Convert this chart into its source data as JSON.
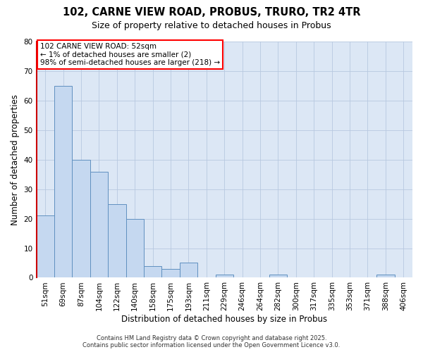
{
  "title_line1": "102, CARNE VIEW ROAD, PROBUS, TRURO, TR2 4TR",
  "title_line2": "Size of property relative to detached houses in Probus",
  "xlabel": "Distribution of detached houses by size in Probus",
  "ylabel": "Number of detached properties",
  "bar_labels": [
    "51sqm",
    "69sqm",
    "87sqm",
    "104sqm",
    "122sqm",
    "140sqm",
    "158sqm",
    "175sqm",
    "193sqm",
    "211sqm",
    "229sqm",
    "246sqm",
    "264sqm",
    "282sqm",
    "300sqm",
    "317sqm",
    "335sqm",
    "353sqm",
    "371sqm",
    "388sqm",
    "406sqm"
  ],
  "bar_values": [
    21,
    65,
    40,
    36,
    25,
    20,
    4,
    3,
    5,
    0,
    1,
    0,
    0,
    1,
    0,
    0,
    0,
    0,
    0,
    1,
    0
  ],
  "bar_color": "#c5d8f0",
  "bar_edge_color": "#6090c0",
  "background_color": "#dce7f5",
  "ylim": [
    0,
    80
  ],
  "yticks": [
    0,
    10,
    20,
    30,
    40,
    50,
    60,
    70,
    80
  ],
  "annotation_text_line1": "102 CARNE VIEW ROAD: 52sqm",
  "annotation_text_line2": "← 1% of detached houses are smaller (2)",
  "annotation_text_line3": "98% of semi-detached houses are larger (218) →",
  "footer_line1": "Contains HM Land Registry data © Crown copyright and database right 2025.",
  "footer_line2": "Contains public sector information licensed under the Open Government Licence v3.0.",
  "left_spine_color": "#cc0000",
  "title1_fontsize": 10.5,
  "title2_fontsize": 9.0,
  "tick_fontsize": 7.5,
  "label_fontsize": 8.5,
  "ann_fontsize": 7.5,
  "footer_fontsize": 6.0
}
